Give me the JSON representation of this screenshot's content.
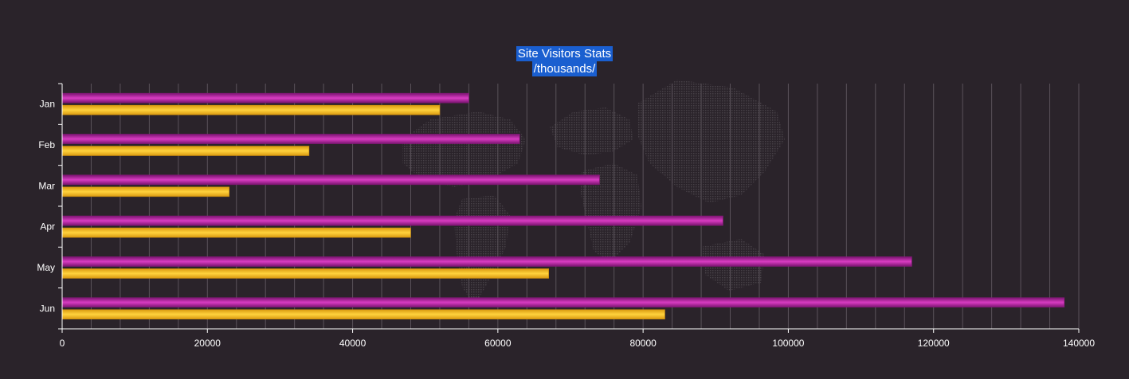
{
  "chart_data": {
    "type": "bar",
    "orientation": "horizontal",
    "title": "Site Visitors Stats",
    "subtitle": "/thousands/",
    "categories": [
      "Jan",
      "Feb",
      "Mar",
      "Apr",
      "May",
      "Jun"
    ],
    "series": [
      {
        "color": "#b5239e",
        "values": [
          56000,
          63000,
          74000,
          91000,
          117000,
          138000
        ]
      },
      {
        "color": "#fbbf24",
        "values": [
          52000,
          34000,
          23000,
          48000,
          67000,
          83000
        ]
      }
    ],
    "x_ticks": [
      "0",
      "20000",
      "40000",
      "60000",
      "80000",
      "100000",
      "120000",
      "140000"
    ],
    "xlim": [
      0,
      140000
    ],
    "grid": true,
    "legend": "none"
  }
}
